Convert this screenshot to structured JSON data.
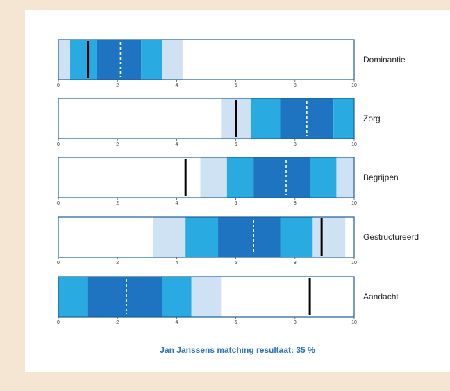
{
  "colors": {
    "light": "#cfe2f3",
    "medium": "#29abe2",
    "dark": "#1f74c2",
    "border": "#1f5f94",
    "marker": "#000000",
    "median": "#ffffff",
    "footer": "#2e75b6"
  },
  "chart_data": {
    "type": "bar",
    "orientation": "horizontal-range",
    "xlim": [
      0,
      10
    ],
    "x_ticks": [
      "0",
      "2",
      "4",
      "6",
      "8",
      "10"
    ],
    "categories": [
      "Dominantie",
      "Zorg",
      "Begrijpen",
      "Gestructureerd",
      "Aandacht"
    ],
    "bands": [
      {
        "name": "Dominantie",
        "light": [
          0,
          0.4
        ],
        "medium": [
          0.4,
          1.3
        ],
        "dark": [
          1.3,
          2.8
        ],
        "medium2": [
          2.8,
          3.5
        ],
        "light2": [
          3.5,
          4.2
        ],
        "median": 2.1,
        "marker": 1.0
      },
      {
        "name": "Zorg",
        "light": [
          5.5,
          6.5
        ],
        "medium": [
          6.5,
          7.5
        ],
        "dark": [
          7.5,
          9.3
        ],
        "medium2": [
          9.3,
          10.0
        ],
        "light2": null,
        "median": 8.4,
        "marker": 6.0
      },
      {
        "name": "Begrijpen",
        "light": [
          4.8,
          5.7
        ],
        "medium": [
          5.7,
          6.6
        ],
        "dark": [
          6.6,
          8.5
        ],
        "medium2": [
          8.5,
          9.4
        ],
        "light2": [
          9.4,
          10.0
        ],
        "median": 7.7,
        "marker": 4.3
      },
      {
        "name": "Gestructureerd",
        "light": [
          3.2,
          4.3
        ],
        "medium": [
          4.3,
          5.4
        ],
        "dark": [
          5.4,
          7.5
        ],
        "medium2": [
          7.5,
          8.6
        ],
        "light2": [
          8.6,
          9.7
        ],
        "median": 6.6,
        "marker": 8.9
      },
      {
        "name": "Aandacht",
        "light": [
          3.5,
          5.5
        ],
        "medium": [
          0,
          1.0
        ],
        "dark": [
          1.0,
          3.5
        ],
        "medium2": [
          3.5,
          4.5
        ],
        "light2": null,
        "median": 2.3,
        "marker": 8.5
      }
    ]
  },
  "footer": {
    "text": "Jan Janssens matching resultaat:  35 %"
  }
}
